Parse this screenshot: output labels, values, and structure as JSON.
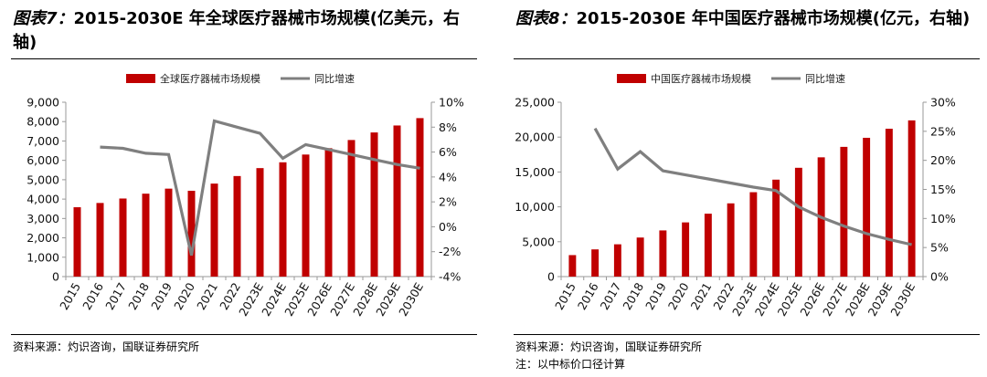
{
  "panels": [
    {
      "fig_no": "图表7：",
      "title": "2015-2030E 年全球医疗器械市场规模(亿美元，右轴)",
      "source": "资料来源：灼识咨询，国联证券研究所",
      "note": ""
    },
    {
      "fig_no": "图表8：",
      "title": "2015-2030E 年中国医疗器械市场规模(亿元，右轴)",
      "source": "资料来源：灼识咨询，国联证券研究所",
      "note": "注：以中标价口径计算"
    }
  ],
  "colors": {
    "bar": "#c00000",
    "line": "#7f7f7f",
    "axis": "#999999"
  },
  "chart_data": [
    {
      "type": "bar+line",
      "title": "2015-2030E 年全球医疗器械市场规模(亿美元，右轴)",
      "categories": [
        "2015",
        "2016",
        "2017",
        "2018",
        "2019",
        "2020",
        "2021",
        "2022",
        "2023E",
        "2024E",
        "2025E",
        "2026E",
        "2027E",
        "2028E",
        "2029E",
        "2030E"
      ],
      "series": [
        {
          "name": "全球医疗器械市场规模",
          "type": "bar",
          "axis": "left",
          "values": [
            3580,
            3800,
            4030,
            4280,
            4540,
            4430,
            4800,
            5190,
            5600,
            5900,
            6300,
            6630,
            7050,
            7440,
            7800,
            8180
          ]
        },
        {
          "name": "同比增速",
          "type": "line",
          "axis": "right",
          "values": [
            null,
            6.4,
            6.3,
            5.9,
            5.8,
            -2.3,
            8.5,
            8.0,
            7.5,
            5.5,
            6.6,
            6.2,
            5.8,
            5.4,
            5.0,
            4.7
          ]
        }
      ],
      "ylim_left": [
        0,
        9000
      ],
      "yticks_left": [
        0,
        1000,
        2000,
        3000,
        4000,
        5000,
        6000,
        7000,
        8000,
        9000
      ],
      "ytick_labels_left": [
        "0",
        "1,000",
        "2,000",
        "3,000",
        "4,000",
        "5,000",
        "6,000",
        "7,000",
        "8,000",
        "9,000"
      ],
      "ylim_right": [
        -4,
        10
      ],
      "yticks_right": [
        -4,
        -2,
        0,
        2,
        4,
        6,
        8,
        10
      ],
      "ytick_labels_right": [
        "-4%",
        "-2%",
        "0%",
        "2%",
        "4%",
        "6%",
        "8%",
        "10%"
      ],
      "legend": [
        "全球医疗器械市场规模",
        "同比增速"
      ],
      "legend_position": "top-center"
    },
    {
      "type": "bar+line",
      "title": "2015-2030E 年中国医疗器械市场规模(亿元，右轴)",
      "categories": [
        "2015",
        "2016",
        "2017",
        "2018",
        "2019",
        "2020",
        "2021",
        "2022",
        "2023E",
        "2024E",
        "2025E",
        "2026E",
        "2027E",
        "2028E",
        "2029E",
        "2030E"
      ],
      "series": [
        {
          "name": "中国医疗器械市场规模",
          "type": "bar",
          "axis": "left",
          "values": [
            3080,
            3900,
            4630,
            5600,
            6620,
            7770,
            9020,
            10500,
            12100,
            13900,
            15600,
            17100,
            18600,
            19900,
            21200,
            22400
          ]
        },
        {
          "name": "同比增速",
          "type": "line",
          "axis": "right",
          "values": [
            null,
            25.5,
            18.5,
            21.5,
            18.2,
            17.5,
            16.8,
            16.1,
            15.4,
            14.8,
            12.0,
            10.2,
            8.7,
            7.4,
            6.4,
            5.5
          ]
        }
      ],
      "ylim_left": [
        0,
        25000
      ],
      "yticks_left": [
        0,
        5000,
        10000,
        15000,
        20000,
        25000
      ],
      "ytick_labels_left": [
        "0",
        "5,000",
        "10,000",
        "15,000",
        "20,000",
        "25,000"
      ],
      "ylim_right": [
        0,
        30
      ],
      "yticks_right": [
        0,
        5,
        10,
        15,
        20,
        25,
        30
      ],
      "ytick_labels_right": [
        "0%",
        "5%",
        "10%",
        "15%",
        "20%",
        "25%",
        "30%"
      ],
      "legend": [
        "中国医疗器械市场规模",
        "同比增速"
      ],
      "legend_position": "top-center"
    }
  ]
}
